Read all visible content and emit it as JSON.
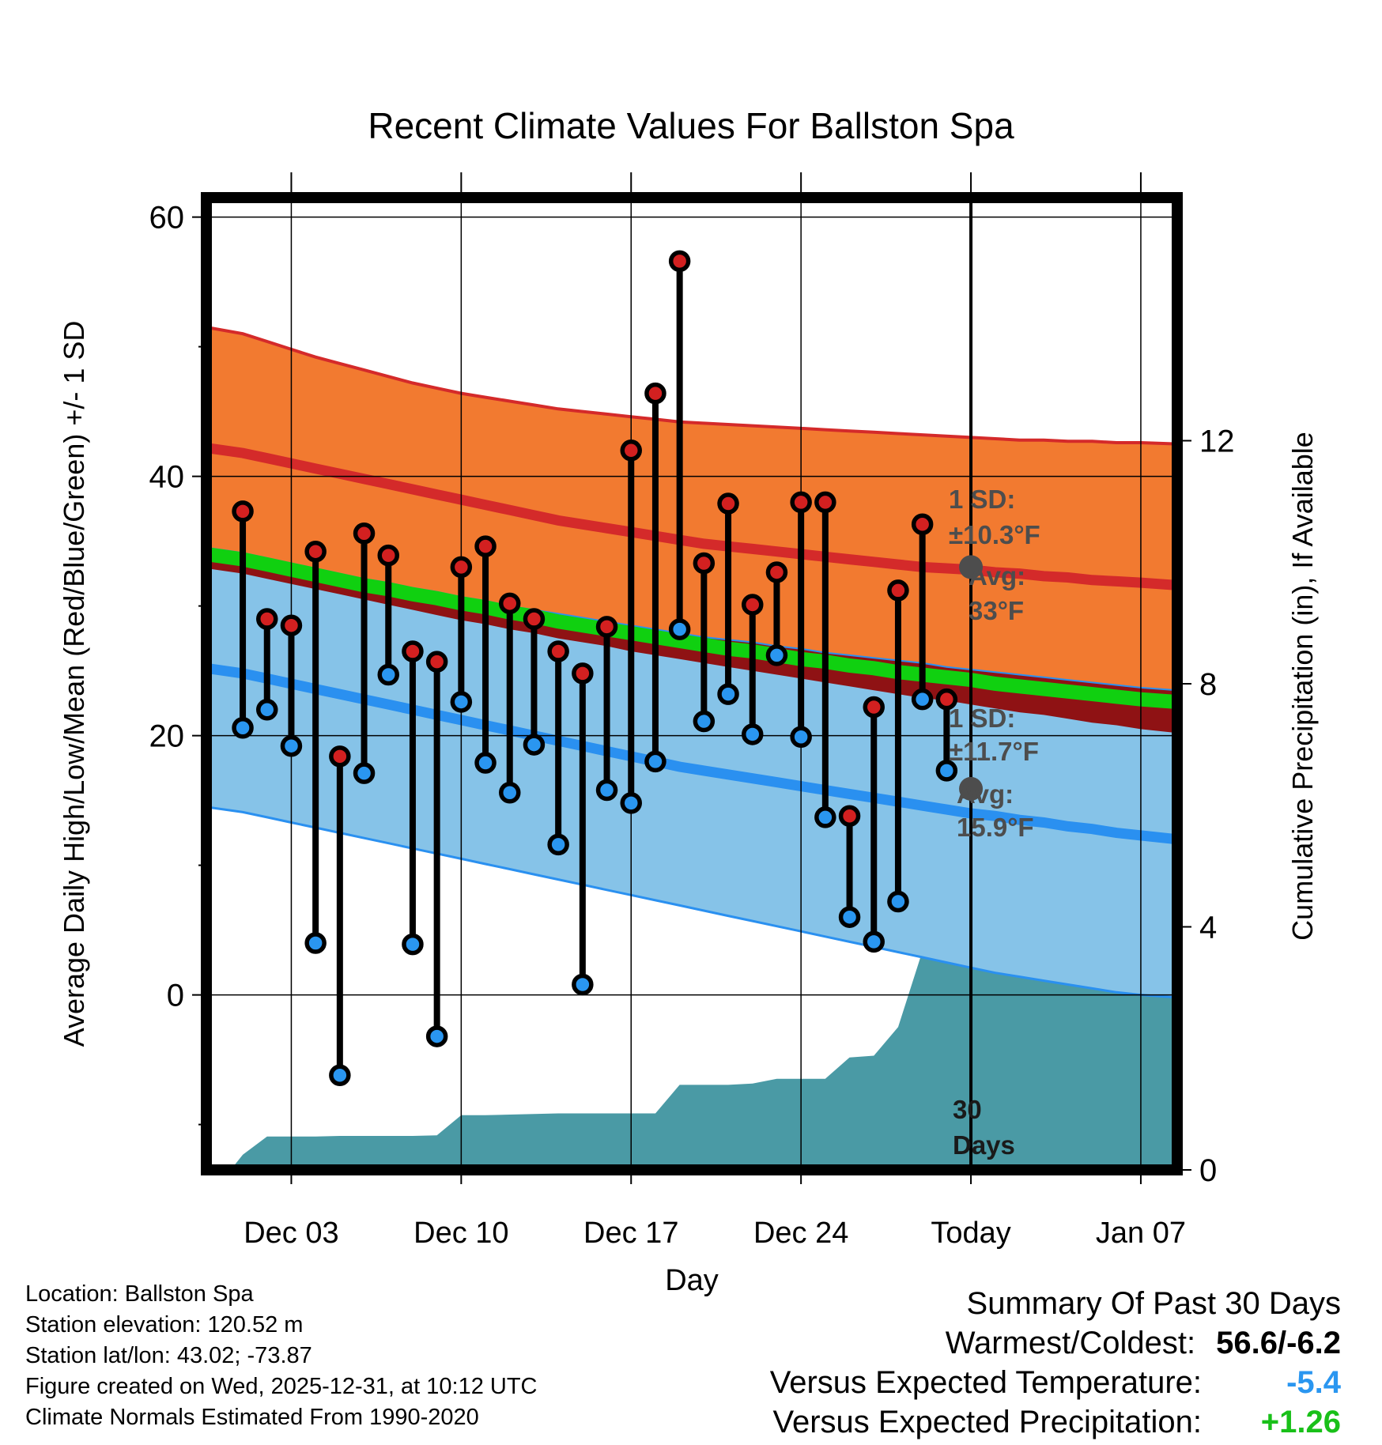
{
  "chart_data": {
    "type": "line",
    "title": "Recent Climate Values For Ballston Spa",
    "xlabel": "Day",
    "ylabel": "Average Daily High/Low/Mean (Red/Blue/Green) +/- 1 SD",
    "y2label": "Cumulative Precipitation (in), If Available",
    "x_range": [
      -1.5,
      38.5
    ],
    "ylim": [
      -13.5,
      61.5
    ],
    "y2lim": [
      0,
      16
    ],
    "yticks": [
      0,
      20,
      40,
      60
    ],
    "yticks_labels": [
      "0",
      "20",
      "40",
      "60"
    ],
    "y2ticks": [
      0,
      4,
      8,
      12
    ],
    "y2ticks_labels": [
      "0",
      "4",
      "8",
      "12"
    ],
    "xticks": [
      {
        "day": 2,
        "label": "Dec 03"
      },
      {
        "day": 9,
        "label": "Dec 10"
      },
      {
        "day": 16,
        "label": "Dec 17"
      },
      {
        "day": 23,
        "label": "Dec 24"
      },
      {
        "day": 30,
        "label": "Today"
      },
      {
        "day": 37,
        "label": "Jan 07"
      }
    ],
    "today_day": 30,
    "days": [
      -1.5,
      0,
      1,
      2,
      3,
      4,
      5,
      6,
      7,
      8,
      9,
      10,
      11,
      12,
      13,
      14,
      15,
      16,
      17,
      18,
      19,
      20,
      21,
      22,
      23,
      24,
      25,
      26,
      27,
      28,
      29,
      30,
      31,
      32,
      33,
      34,
      35,
      36,
      37,
      38.5
    ],
    "normals": {
      "high_mean": [
        42.2,
        41.8,
        41.4,
        41.0,
        40.6,
        40.2,
        39.8,
        39.4,
        39.0,
        38.6,
        38.2,
        37.8,
        37.4,
        37.0,
        36.6,
        36.3,
        36.0,
        35.7,
        35.4,
        35.1,
        34.8,
        34.6,
        34.4,
        34.2,
        34.0,
        33.8,
        33.6,
        33.4,
        33.2,
        33.0,
        32.9,
        32.8,
        32.6,
        32.5,
        32.3,
        32.2,
        32.0,
        31.9,
        31.8,
        31.6
      ],
      "high_sd_upper": [
        51.5,
        51.0,
        50.4,
        49.8,
        49.2,
        48.7,
        48.2,
        47.7,
        47.2,
        46.8,
        46.4,
        46.1,
        45.8,
        45.5,
        45.2,
        45.0,
        44.8,
        44.6,
        44.4,
        44.2,
        44.1,
        44.0,
        43.9,
        43.8,
        43.7,
        43.6,
        43.5,
        43.4,
        43.3,
        43.2,
        43.1,
        43.0,
        42.9,
        42.8,
        42.8,
        42.7,
        42.7,
        42.6,
        42.6,
        42.5
      ],
      "high_sd_lower": [
        32.9,
        32.5,
        32.1,
        31.7,
        31.3,
        30.9,
        30.5,
        30.1,
        29.7,
        29.3,
        28.9,
        28.6,
        28.2,
        27.9,
        27.5,
        27.2,
        26.9,
        26.5,
        26.2,
        25.9,
        25.6,
        25.3,
        25.0,
        24.7,
        24.4,
        24.1,
        23.8,
        23.5,
        23.2,
        22.9,
        22.7,
        22.4,
        22.1,
        21.8,
        21.6,
        21.3,
        21.0,
        20.8,
        20.5,
        20.2
      ],
      "mean": [
        34.0,
        33.6,
        33.2,
        32.8,
        32.4,
        32.0,
        31.6,
        31.3,
        30.9,
        30.6,
        30.2,
        29.9,
        29.5,
        29.2,
        28.8,
        28.5,
        28.2,
        27.9,
        27.6,
        27.3,
        27.0,
        26.7,
        26.5,
        26.2,
        25.9,
        25.7,
        25.4,
        25.2,
        24.9,
        24.7,
        24.5,
        24.3,
        24.0,
        23.8,
        23.6,
        23.4,
        23.2,
        23.0,
        22.8,
        22.6
      ],
      "low_mean": [
        25.2,
        24.8,
        24.4,
        24.0,
        23.6,
        23.2,
        22.8,
        22.4,
        22.0,
        21.6,
        21.2,
        20.8,
        20.4,
        20.0,
        19.6,
        19.2,
        18.8,
        18.4,
        18.0,
        17.6,
        17.3,
        17.0,
        16.7,
        16.4,
        16.1,
        15.8,
        15.5,
        15.2,
        14.9,
        14.6,
        14.3,
        14.0,
        13.8,
        13.5,
        13.3,
        13.0,
        12.8,
        12.5,
        12.3,
        12.0
      ],
      "low_sd_upper": [
        34.5,
        34.1,
        33.7,
        33.3,
        32.9,
        32.5,
        32.1,
        31.8,
        31.4,
        31.1,
        30.7,
        30.4,
        30.0,
        29.7,
        29.4,
        29.1,
        28.8,
        28.5,
        28.2,
        27.9,
        27.6,
        27.4,
        27.2,
        26.9,
        26.7,
        26.4,
        26.2,
        26.0,
        25.8,
        25.6,
        25.3,
        25.1,
        24.9,
        24.7,
        24.5,
        24.3,
        24.1,
        23.9,
        23.7,
        23.5
      ],
      "low_sd_lower": [
        14.5,
        14.1,
        13.7,
        13.3,
        12.9,
        12.5,
        12.1,
        11.7,
        11.3,
        10.9,
        10.5,
        10.1,
        9.7,
        9.3,
        8.9,
        8.5,
        8.1,
        7.7,
        7.3,
        6.9,
        6.5,
        6.1,
        5.7,
        5.3,
        4.9,
        4.5,
        4.1,
        3.7,
        3.3,
        2.9,
        2.5,
        2.1,
        1.7,
        1.4,
        1.1,
        0.8,
        0.5,
        0.2,
        0.0,
        -0.2
      ]
    },
    "series": [
      {
        "name": "Daily High",
        "color": "#d32020",
        "x": [
          0,
          1,
          2,
          3,
          4,
          5,
          6,
          7,
          8,
          9,
          10,
          11,
          12,
          13,
          14,
          15,
          16,
          17,
          18,
          19,
          20,
          21,
          22,
          23,
          24,
          25,
          26,
          27,
          28,
          29
        ],
        "values": [
          37.3,
          29.0,
          28.5,
          34.2,
          18.4,
          35.6,
          33.9,
          26.5,
          25.7,
          33.0,
          34.6,
          30.2,
          29.0,
          26.5,
          24.8,
          28.4,
          42.0,
          46.4,
          56.6,
          33.3,
          37.9,
          30.1,
          32.6,
          38.0,
          38.0,
          13.8,
          22.2,
          31.2,
          36.3,
          22.8
        ]
      },
      {
        "name": "Daily Low",
        "color": "#2a96f0",
        "x": [
          0,
          1,
          2,
          3,
          4,
          5,
          6,
          7,
          8,
          9,
          10,
          11,
          12,
          13,
          14,
          15,
          16,
          17,
          18,
          19,
          20,
          21,
          22,
          23,
          24,
          25,
          26,
          27,
          28,
          29
        ],
        "values": [
          20.6,
          22.0,
          19.2,
          4.0,
          -6.2,
          17.1,
          24.7,
          3.9,
          -3.2,
          22.6,
          17.9,
          15.6,
          19.3,
          11.6,
          0.8,
          15.8,
          14.8,
          18.0,
          28.2,
          21.1,
          23.2,
          20.1,
          26.2,
          19.9,
          13.7,
          6.0,
          4.1,
          7.2,
          22.8,
          17.3
        ]
      },
      {
        "name": "Cumulative Precipitation",
        "color": "#4a9aa5",
        "axis": "y2",
        "x": [
          -0.5,
          0,
          1,
          2,
          3,
          4,
          5,
          6,
          7,
          8,
          9,
          10,
          11,
          12,
          13,
          14,
          15,
          16,
          17,
          18,
          19,
          20,
          21,
          22,
          23,
          24,
          25,
          26,
          27,
          28,
          29,
          30,
          31,
          32,
          33,
          34,
          35,
          36,
          37,
          38.5
        ],
        "values": [
          0,
          0.25,
          0.55,
          0.55,
          0.55,
          0.56,
          0.56,
          0.56,
          0.56,
          0.57,
          0.9,
          0.9,
          0.91,
          0.92,
          0.93,
          0.93,
          0.93,
          0.93,
          0.93,
          1.4,
          1.4,
          1.4,
          1.42,
          1.5,
          1.5,
          1.5,
          1.85,
          1.88,
          2.35,
          3.6,
          3.7,
          3.7,
          3.7,
          3.7,
          3.7,
          3.7,
          3.7,
          3.7,
          3.7,
          3.7
        ]
      }
    ],
    "annotations": {
      "high_sd_line1": "1 SD:",
      "high_sd_line2": "±10.3°F",
      "high_avg_line1": "Avg:",
      "high_avg_line2": "33°F",
      "high_avg_value": 33.0,
      "low_sd_line1": "1 SD:",
      "low_sd_line2": "±11.7°F",
      "low_avg_line1": "Avg:",
      "low_avg_line2": "15.9°F",
      "low_avg_value": 15.9,
      "window_line1": "30",
      "window_line2": "Days"
    },
    "colors": {
      "high_band": "#f27a30",
      "high_line": "#d42a2a",
      "low_band": "#86c3e8",
      "low_line": "#2a90f0",
      "low_sd_edge": "#2a90f0",
      "mean_band": "#8f1214",
      "mean_line": "#10d010",
      "precip": "#4a9aa5",
      "annotation": "#4d4d4d"
    }
  },
  "info": {
    "location": "Location: Ballston Spa",
    "elevation": "Station elevation: 120.52 m",
    "latlon": "Station lat/lon: 43.02; -73.87",
    "created": "Figure created on Wed, 2025-12-31, at 10:12 UTC",
    "normals": "Climate Normals Estimated From 1990-2020"
  },
  "summary": {
    "title": "Summary Of Past 30 Days",
    "warm_cold_label": "Warmest/Coldest:",
    "warm_cold_value": "56.6/-6.2",
    "temp_label": "Versus Expected Temperature:",
    "temp_value": "-5.4",
    "temp_color": "#2a96f0",
    "precip_label": "Versus Expected Precipitation:",
    "precip_value": "+1.26",
    "precip_color": "#19c019"
  }
}
